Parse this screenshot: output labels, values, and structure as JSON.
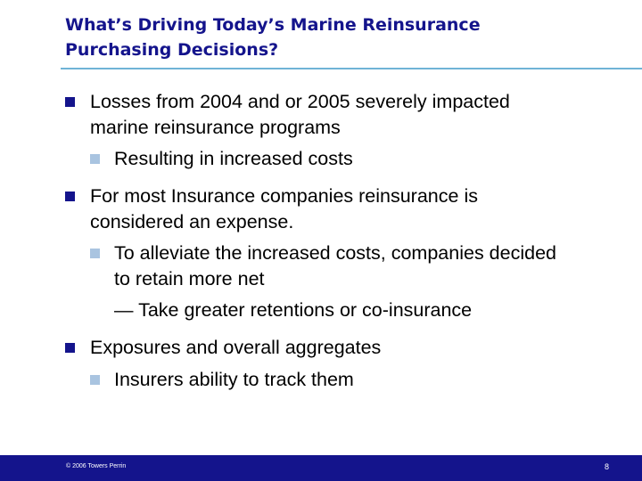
{
  "slide": {
    "title_line1": "What’s Driving Today’s Marine Reinsurance",
    "title_line2": "Purchasing Decisions?"
  },
  "bullets": {
    "b1": {
      "line1": "Losses from 2004 and or 2005 severely impacted",
      "line2": "marine reinsurance programs"
    },
    "b1_sub1": "Resulting in increased costs",
    "b2": {
      "line1": "For most Insurance companies reinsurance is",
      "line2": "considered an expense."
    },
    "b2_sub1": {
      "line1": "To alleviate the increased costs, companies decided",
      "line2": "to retain more net"
    },
    "b2_sub1_dash": "— Take greater retentions or co-insurance",
    "b3": "Exposures and overall aggregates",
    "b3_sub1": "Insurers ability to track them"
  },
  "footer": {
    "copyright": "© 2006 Towers Perrin",
    "page_number": "8"
  },
  "colors": {
    "title": "#14148c",
    "rule": "#6fb3d6",
    "bullet_primary": "#14148c",
    "bullet_secondary": "#a9c4e0",
    "footer_bar": "#14148c"
  }
}
